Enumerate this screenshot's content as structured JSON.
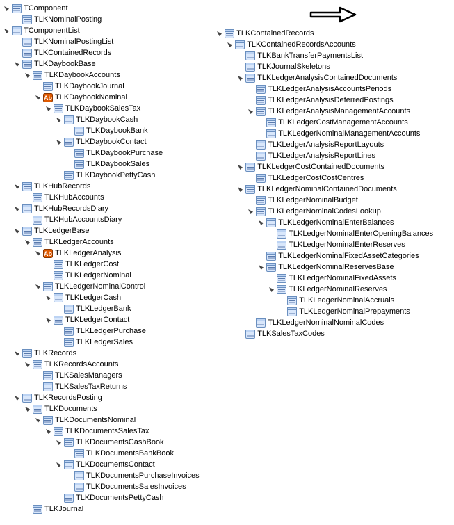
{
  "colors": {
    "form_border": "#6a8fbf",
    "form_fill1": "#d9e7fb",
    "form_fill2": "#bcd3f3",
    "form_line": "#3a5f99",
    "ab_fill": "#e05a00",
    "tri_open": "#444444",
    "tri_closed": "#888888"
  },
  "leftTree": [
    {
      "label": "TComponent",
      "icon": "form",
      "exp": true,
      "children": [
        {
          "label": "TLKNominalPosting",
          "icon": "form"
        }
      ]
    },
    {
      "label": "TComponentList",
      "icon": "form",
      "exp": true,
      "children": [
        {
          "label": "TLKNominalPostingList",
          "icon": "form"
        },
        {
          "label": "TLKContainedRecords",
          "icon": "form"
        },
        {
          "label": "TLKDaybookBase",
          "icon": "form",
          "exp": true,
          "children": [
            {
              "label": "TLKDaybookAccounts",
              "icon": "form",
              "exp": true,
              "children": [
                {
                  "label": "TLKDaybookJournal",
                  "icon": "form"
                },
                {
                  "label": "TLKDaybookNominal",
                  "icon": "ab",
                  "exp": true,
                  "children": [
                    {
                      "label": "TLKDaybookSalesTax",
                      "icon": "form",
                      "exp": true,
                      "children": [
                        {
                          "label": "TLKDaybookCash",
                          "icon": "form",
                          "exp": true,
                          "children": [
                            {
                              "label": "TLKDaybookBank",
                              "icon": "form"
                            }
                          ]
                        },
                        {
                          "label": "TLKDaybookContact",
                          "icon": "form",
                          "exp": true,
                          "children": [
                            {
                              "label": "TLKDaybookPurchase",
                              "icon": "form"
                            },
                            {
                              "label": "TLKDaybookSales",
                              "icon": "form"
                            }
                          ]
                        },
                        {
                          "label": "TLKDaybookPettyCash",
                          "icon": "form"
                        }
                      ]
                    }
                  ]
                }
              ]
            }
          ]
        },
        {
          "label": "TLKHubRecords",
          "icon": "form",
          "exp": true,
          "children": [
            {
              "label": "TLKHubAccounts",
              "icon": "form"
            }
          ]
        },
        {
          "label": "TLKHubRecordsDiary",
          "icon": "form",
          "exp": true,
          "children": [
            {
              "label": "TLKHubAccountsDiary",
              "icon": "form"
            }
          ]
        },
        {
          "label": "TLKLedgerBase",
          "icon": "form",
          "exp": true,
          "children": [
            {
              "label": "TLKLedgerAccounts",
              "icon": "form",
              "exp": true,
              "children": [
                {
                  "label": "TLKLedgerAnalysis",
                  "icon": "ab",
                  "exp": true,
                  "children": [
                    {
                      "label": "TLKLedgerCost",
                      "icon": "form"
                    },
                    {
                      "label": "TLKLedgerNominal",
                      "icon": "form"
                    }
                  ]
                },
                {
                  "label": "TLKLedgerNominalControl",
                  "icon": "form",
                  "exp": true,
                  "children": [
                    {
                      "label": "TLKLedgerCash",
                      "icon": "form",
                      "exp": true,
                      "children": [
                        {
                          "label": "TLKLedgerBank",
                          "icon": "form"
                        }
                      ]
                    },
                    {
                      "label": "TLKLedgerContact",
                      "icon": "form",
                      "exp": true,
                      "children": [
                        {
                          "label": "TLKLedgerPurchase",
                          "icon": "form"
                        },
                        {
                          "label": "TLKLedgerSales",
                          "icon": "form"
                        }
                      ]
                    }
                  ]
                }
              ]
            }
          ]
        },
        {
          "label": "TLKRecords",
          "icon": "form",
          "exp": true,
          "children": [
            {
              "label": "TLKRecordsAccounts",
              "icon": "form",
              "exp": true,
              "children": [
                {
                  "label": "TLKSalesManagers",
                  "icon": "form"
                },
                {
                  "label": "TLKSalesTaxReturns",
                  "icon": "form"
                }
              ]
            }
          ]
        },
        {
          "label": "TLKRecordsPosting",
          "icon": "form",
          "exp": true,
          "children": [
            {
              "label": "TLKDocuments",
              "icon": "form",
              "exp": true,
              "children": [
                {
                  "label": "TLKDocumentsNominal",
                  "icon": "form",
                  "exp": true,
                  "children": [
                    {
                      "label": "TLKDocumentsSalesTax",
                      "icon": "form",
                      "exp": true,
                      "children": [
                        {
                          "label": "TLKDocumentsCashBook",
                          "icon": "form",
                          "exp": true,
                          "children": [
                            {
                              "label": "TLKDocumentsBankBook",
                              "icon": "form"
                            }
                          ]
                        },
                        {
                          "label": "TLKDocumentsContact",
                          "icon": "form",
                          "exp": true,
                          "children": [
                            {
                              "label": "TLKDocumentsPurchaseInvoices",
                              "icon": "form"
                            },
                            {
                              "label": "TLKDocumentsSalesInvoices",
                              "icon": "form"
                            }
                          ]
                        },
                        {
                          "label": "TLKDocumentsPettyCash",
                          "icon": "form"
                        }
                      ]
                    }
                  ]
                }
              ]
            },
            {
              "label": "TLKJournal",
              "icon": "form"
            }
          ]
        }
      ]
    }
  ],
  "rightTree": [
    {
      "label": "TLKContainedRecords",
      "icon": "form",
      "exp": true,
      "children": [
        {
          "label": "TLKContainedRecordsAccounts",
          "icon": "form",
          "exp": true,
          "children": [
            {
              "label": "TLKBankTransferPaymentsList",
              "icon": "form"
            },
            {
              "label": "TLKJournalSkeletons",
              "icon": "form"
            },
            {
              "label": "TLKLedgerAnalysisContainedDocuments",
              "icon": "form",
              "exp": true,
              "children": [
                {
                  "label": "TLKLedgerAnalysisAccountsPeriods",
                  "icon": "form"
                },
                {
                  "label": "TLKLedgerAnalysisDeferredPostings",
                  "icon": "form"
                },
                {
                  "label": "TLKLedgerAnalysisManagementAccounts",
                  "icon": "form",
                  "exp": true,
                  "children": [
                    {
                      "label": "TLKLedgerCostManagementAccounts",
                      "icon": "form"
                    },
                    {
                      "label": "TLKLedgerNominalManagementAccounts",
                      "icon": "form"
                    }
                  ]
                },
                {
                  "label": "TLKLedgerAnalysisReportLayouts",
                  "icon": "form"
                },
                {
                  "label": "TLKLedgerAnalysisReportLines",
                  "icon": "form"
                }
              ]
            },
            {
              "label": "TLKLedgerCostContainedDocuments",
              "icon": "form",
              "exp": true,
              "children": [
                {
                  "label": "TLKLedgerCostCostCentres",
                  "icon": "form"
                }
              ]
            },
            {
              "label": "TLKLedgerNominalContainedDocuments",
              "icon": "form",
              "exp": true,
              "children": [
                {
                  "label": "TLKLedgerNominalBudget",
                  "icon": "form"
                },
                {
                  "label": "TLKLedgerNominalCodesLookup",
                  "icon": "form",
                  "exp": true,
                  "children": [
                    {
                      "label": "TLKLedgerNominalEnterBalances",
                      "icon": "form",
                      "exp": true,
                      "children": [
                        {
                          "label": "TLKLedgerNominalEnterOpeningBalances",
                          "icon": "form"
                        },
                        {
                          "label": "TLKLedgerNominalEnterReserves",
                          "icon": "form"
                        }
                      ]
                    },
                    {
                      "label": "TLKLedgerNominalFixedAssetCategories",
                      "icon": "form"
                    },
                    {
                      "label": "TLKLedgerNominalReservesBase",
                      "icon": "form",
                      "exp": true,
                      "children": [
                        {
                          "label": "TLKLedgerNominalFixedAssets",
                          "icon": "form"
                        },
                        {
                          "label": "TLKLedgerNominalReserves",
                          "icon": "form",
                          "exp": true,
                          "children": [
                            {
                              "label": "TLKLedgerNominalAccruals",
                              "icon": "form"
                            },
                            {
                              "label": "TLKLedgerNominalPrepayments",
                              "icon": "form"
                            }
                          ]
                        }
                      ]
                    }
                  ]
                },
                {
                  "label": "TLKLedgerNominalNominalCodes",
                  "icon": "form"
                }
              ]
            },
            {
              "label": "TLKSalesTaxCodes",
              "icon": "form"
            }
          ]
        }
      ]
    }
  ]
}
